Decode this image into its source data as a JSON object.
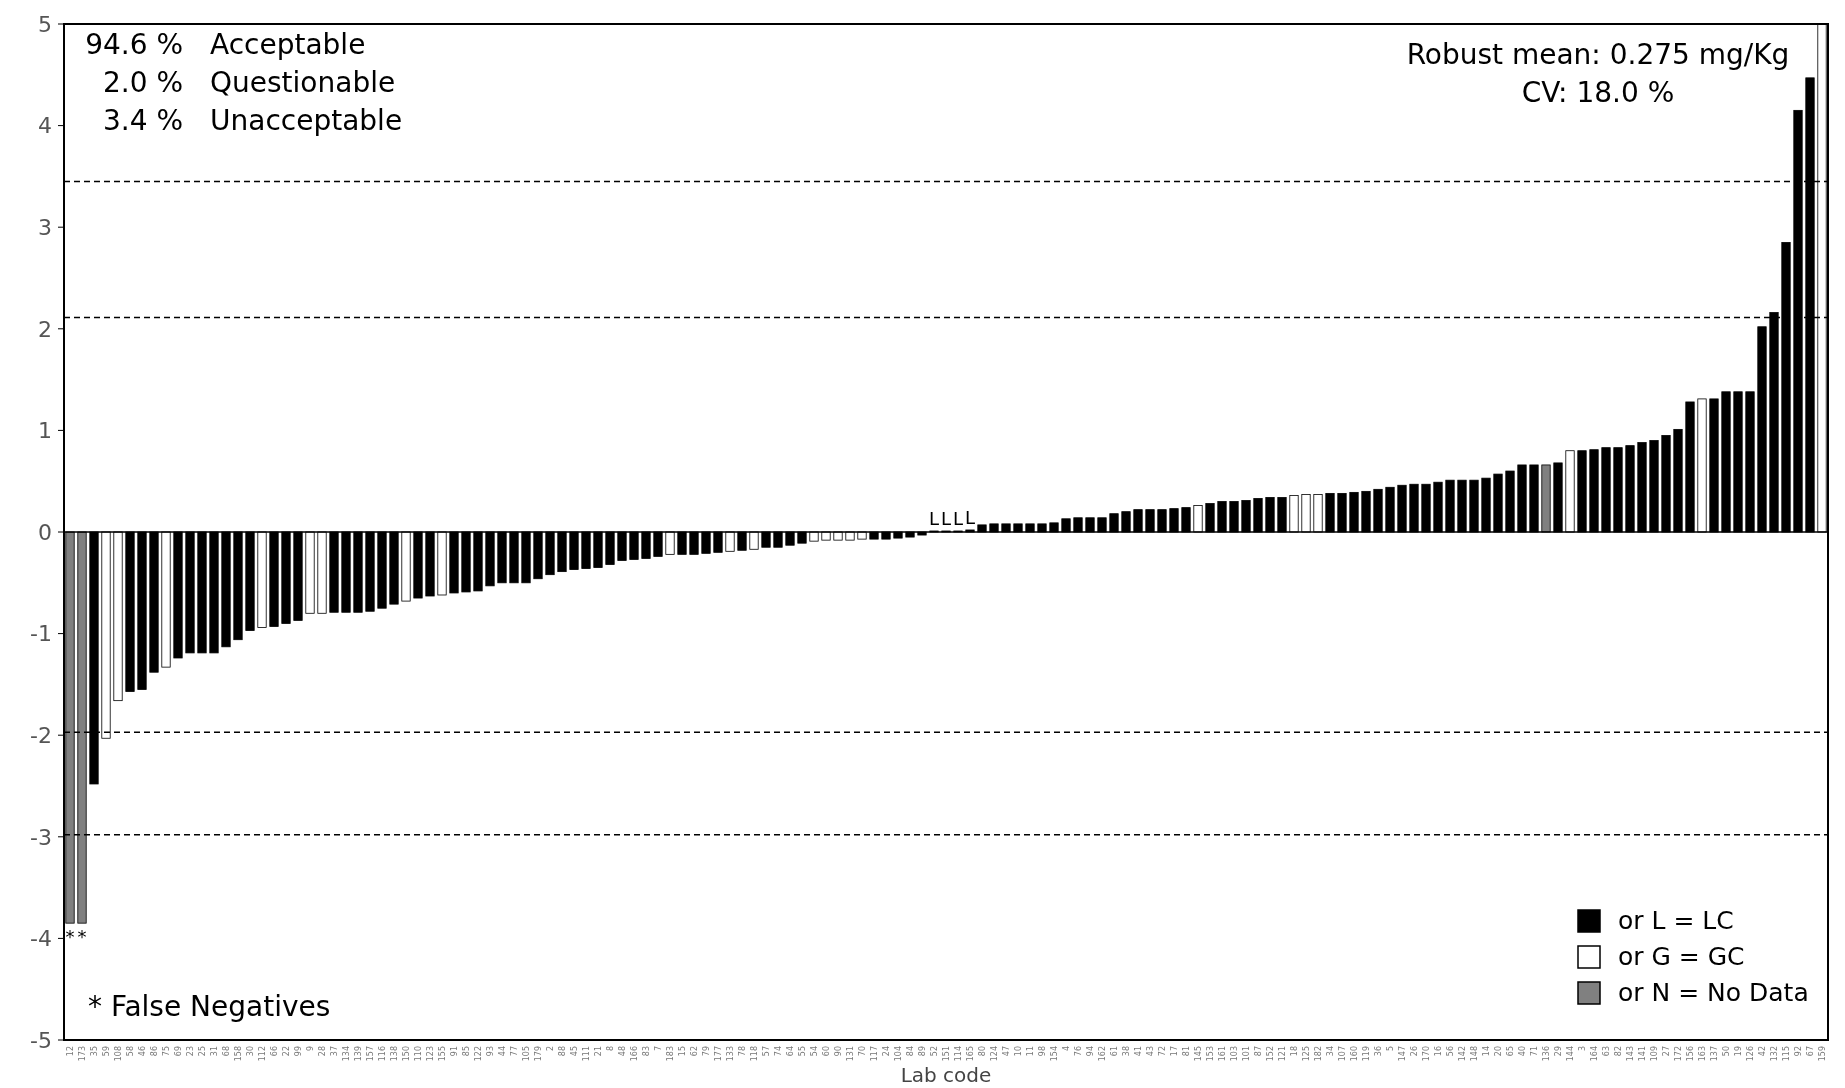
{
  "chart_data": {
    "type": "bar",
    "xlabel": "Lab code",
    "legend": "bottom right",
    "grid": false,
    "categories": [
      "12",
      "173",
      "35",
      "59",
      "108",
      "58",
      "46",
      "86",
      "75",
      "69",
      "23",
      "25",
      "31",
      "68",
      "158",
      "30",
      "112",
      "66",
      "22",
      "99",
      "9",
      "28",
      "37",
      "134",
      "139",
      "157",
      "116",
      "138",
      "150",
      "110",
      "123",
      "155",
      "91",
      "85",
      "122",
      "93",
      "44",
      "77",
      "105",
      "179",
      "2",
      "88",
      "45",
      "111",
      "21",
      "8",
      "48",
      "166",
      "83",
      "7",
      "183",
      "15",
      "62",
      "79",
      "177",
      "133",
      "78",
      "118",
      "57",
      "74",
      "64",
      "55",
      "54",
      "60",
      "90",
      "131",
      "70",
      "117",
      "24",
      "104",
      "84",
      "89",
      "52",
      "151",
      "114",
      "165",
      "80",
      "124",
      "47",
      "10",
      "11",
      "98",
      "154",
      "4",
      "76",
      "94",
      "162",
      "61",
      "38",
      "41",
      "43",
      "72",
      "17",
      "81",
      "145",
      "153",
      "161",
      "103",
      "101",
      "87",
      "152",
      "121",
      "18",
      "125",
      "182",
      "34",
      "107",
      "160",
      "119",
      "36",
      "5",
      "147",
      "26",
      "170",
      "16",
      "56",
      "142",
      "148",
      "14",
      "20",
      "65",
      "40",
      "71",
      "136",
      "29",
      "144",
      "3",
      "164",
      "63",
      "82",
      "143",
      "141",
      "109",
      "27",
      "172",
      "156",
      "163",
      "137",
      "50",
      "19",
      "126",
      "42",
      "132",
      "115",
      "92",
      "67",
      "159"
    ],
    "ylim": [
      -5,
      5
    ],
    "yticks": [
      -5,
      -4,
      -3,
      -2,
      -1,
      0,
      1,
      2,
      3,
      4,
      5
    ],
    "series": [
      {
        "name": "or L = LC",
        "color": "#000000",
        "values": [
          null,
          null,
          -2.48,
          null,
          null,
          -1.57,
          -1.55,
          -1.38,
          null,
          -1.24,
          -1.19,
          -1.19,
          -1.19,
          -1.13,
          -1.06,
          -0.97,
          null,
          -0.93,
          -0.9,
          -0.87,
          null,
          null,
          -0.79,
          -0.79,
          -0.79,
          -0.78,
          -0.75,
          -0.71,
          null,
          -0.65,
          -0.63,
          null,
          -0.6,
          -0.59,
          -0.58,
          -0.53,
          -0.5,
          -0.5,
          -0.5,
          -0.46,
          -0.42,
          -0.39,
          -0.37,
          -0.36,
          -0.35,
          -0.32,
          -0.28,
          -0.27,
          -0.26,
          -0.24,
          null,
          -0.22,
          -0.22,
          -0.21,
          -0.2,
          null,
          -0.18,
          null,
          -0.15,
          -0.15,
          -0.13,
          -0.11,
          null,
          null,
          null,
          null,
          null,
          -0.07,
          -0.07,
          -0.06,
          -0.05,
          -0.03,
          0.01,
          0.01,
          0.01,
          0.02,
          0.07,
          0.08,
          0.08,
          0.08,
          0.08,
          0.08,
          0.09,
          0.13,
          0.14,
          0.14,
          0.14,
          0.18,
          0.2,
          0.22,
          0.22,
          0.22,
          0.23,
          0.24,
          null,
          0.28,
          0.3,
          0.3,
          0.31,
          0.33,
          0.34,
          0.34,
          null,
          null,
          null,
          0.38,
          0.38,
          0.39,
          0.4,
          0.42,
          0.44,
          0.46,
          0.47,
          0.47,
          0.49,
          0.51,
          0.51,
          0.51,
          0.53,
          0.57,
          0.6,
          0.66,
          0.66,
          null,
          0.68,
          null,
          0.8,
          0.81,
          0.83,
          0.83,
          0.85,
          0.88,
          0.9,
          0.95,
          1.01,
          1.28,
          null,
          1.31,
          1.38,
          1.38,
          1.38,
          2.02,
          2.16,
          2.85,
          4.15,
          4.47,
          null
        ]
      },
      {
        "name": "or G = GC",
        "color": "#ffffff",
        "values": [
          null,
          null,
          null,
          -2.03,
          -1.66,
          null,
          null,
          null,
          -1.33,
          null,
          null,
          null,
          null,
          null,
          null,
          null,
          -0.94,
          null,
          null,
          null,
          -0.8,
          -0.8,
          null,
          null,
          null,
          null,
          null,
          null,
          -0.68,
          null,
          null,
          -0.62,
          null,
          null,
          null,
          null,
          null,
          null,
          null,
          null,
          null,
          null,
          null,
          null,
          null,
          null,
          null,
          null,
          null,
          null,
          -0.22,
          null,
          null,
          null,
          null,
          -0.19,
          null,
          -0.17,
          null,
          null,
          null,
          null,
          -0.09,
          -0.08,
          -0.08,
          -0.08,
          -0.07,
          null,
          null,
          null,
          null,
          null,
          null,
          null,
          null,
          null,
          null,
          null,
          null,
          null,
          null,
          null,
          null,
          null,
          null,
          null,
          null,
          null,
          null,
          null,
          null,
          null,
          null,
          null,
          0.26,
          null,
          null,
          null,
          null,
          null,
          null,
          null,
          0.36,
          0.37,
          0.37,
          null,
          null,
          null,
          null,
          null,
          null,
          null,
          null,
          null,
          null,
          null,
          null,
          null,
          null,
          null,
          null,
          null,
          null,
          null,
          null,
          0.8,
          null,
          null,
          null,
          null,
          null,
          null,
          null,
          null,
          null,
          null,
          1.31,
          null,
          null,
          null,
          null,
          null,
          null,
          null,
          null,
          null,
          5.0
        ]
      },
      {
        "name": "or N = No Data",
        "color": "#808080",
        "values": [
          -3.85,
          -3.85,
          null,
          null,
          null,
          null,
          null,
          null,
          null,
          null,
          null,
          null,
          null,
          null,
          null,
          null,
          null,
          null,
          null,
          null,
          null,
          null,
          null,
          null,
          null,
          null,
          null,
          null,
          null,
          null,
          null,
          null,
          null,
          null,
          null,
          null,
          null,
          null,
          null,
          null,
          null,
          null,
          null,
          null,
          null,
          null,
          null,
          null,
          null,
          null,
          null,
          null,
          null,
          null,
          null,
          null,
          null,
          null,
          null,
          null,
          null,
          null,
          null,
          null,
          null,
          null,
          null,
          null,
          null,
          null,
          null,
          null,
          null,
          null,
          null,
          null,
          null,
          null,
          null,
          null,
          null,
          null,
          null,
          null,
          null,
          null,
          null,
          null,
          null,
          null,
          null,
          null,
          null,
          null,
          null,
          null,
          null,
          null,
          null,
          null,
          null,
          null,
          null,
          null,
          null,
          null,
          null,
          null,
          null,
          null,
          null,
          null,
          null,
          null,
          null,
          null,
          null,
          null,
          null,
          null,
          null,
          null,
          null,
          0.66,
          null,
          null,
          null,
          null,
          null,
          null,
          null,
          null,
          null,
          null,
          null,
          null,
          null,
          null,
          null,
          null,
          null,
          null,
          null,
          null,
          null,
          null,
          null
        ]
      }
    ],
    "ref_lines": [
      {
        "axis": "y",
        "value": 3.45,
        "color": "#000000",
        "line_style": "dashed"
      },
      {
        "axis": "y",
        "value": 2.11,
        "color": "#000000",
        "line_style": "dashed"
      },
      {
        "axis": "y",
        "value": -1.97,
        "color": "#000000",
        "line_style": "dashed"
      },
      {
        "axis": "y",
        "value": -2.98,
        "color": "#000000",
        "line_style": "dashed"
      }
    ],
    "annotations": [
      "94.6 %  Acceptable",
      "2.0 %  Questionable",
      "3.4 %  Unacceptable",
      "Robust mean: 0.275 mg/Kg",
      "CV: 18.0 %",
      "* False Negatives",
      {
        "text": "*",
        "x": "12",
        "y": -3.85
      },
      {
        "text": "*",
        "x": "173",
        "y": -3.85
      },
      {
        "text": "L",
        "x": "52",
        "y": 0.01
      },
      {
        "text": "L",
        "x": "151",
        "y": 0.01
      },
      {
        "text": "L",
        "x": "114",
        "y": 0.01
      },
      {
        "text": "L",
        "x": "165",
        "y": 0.02
      }
    ]
  }
}
